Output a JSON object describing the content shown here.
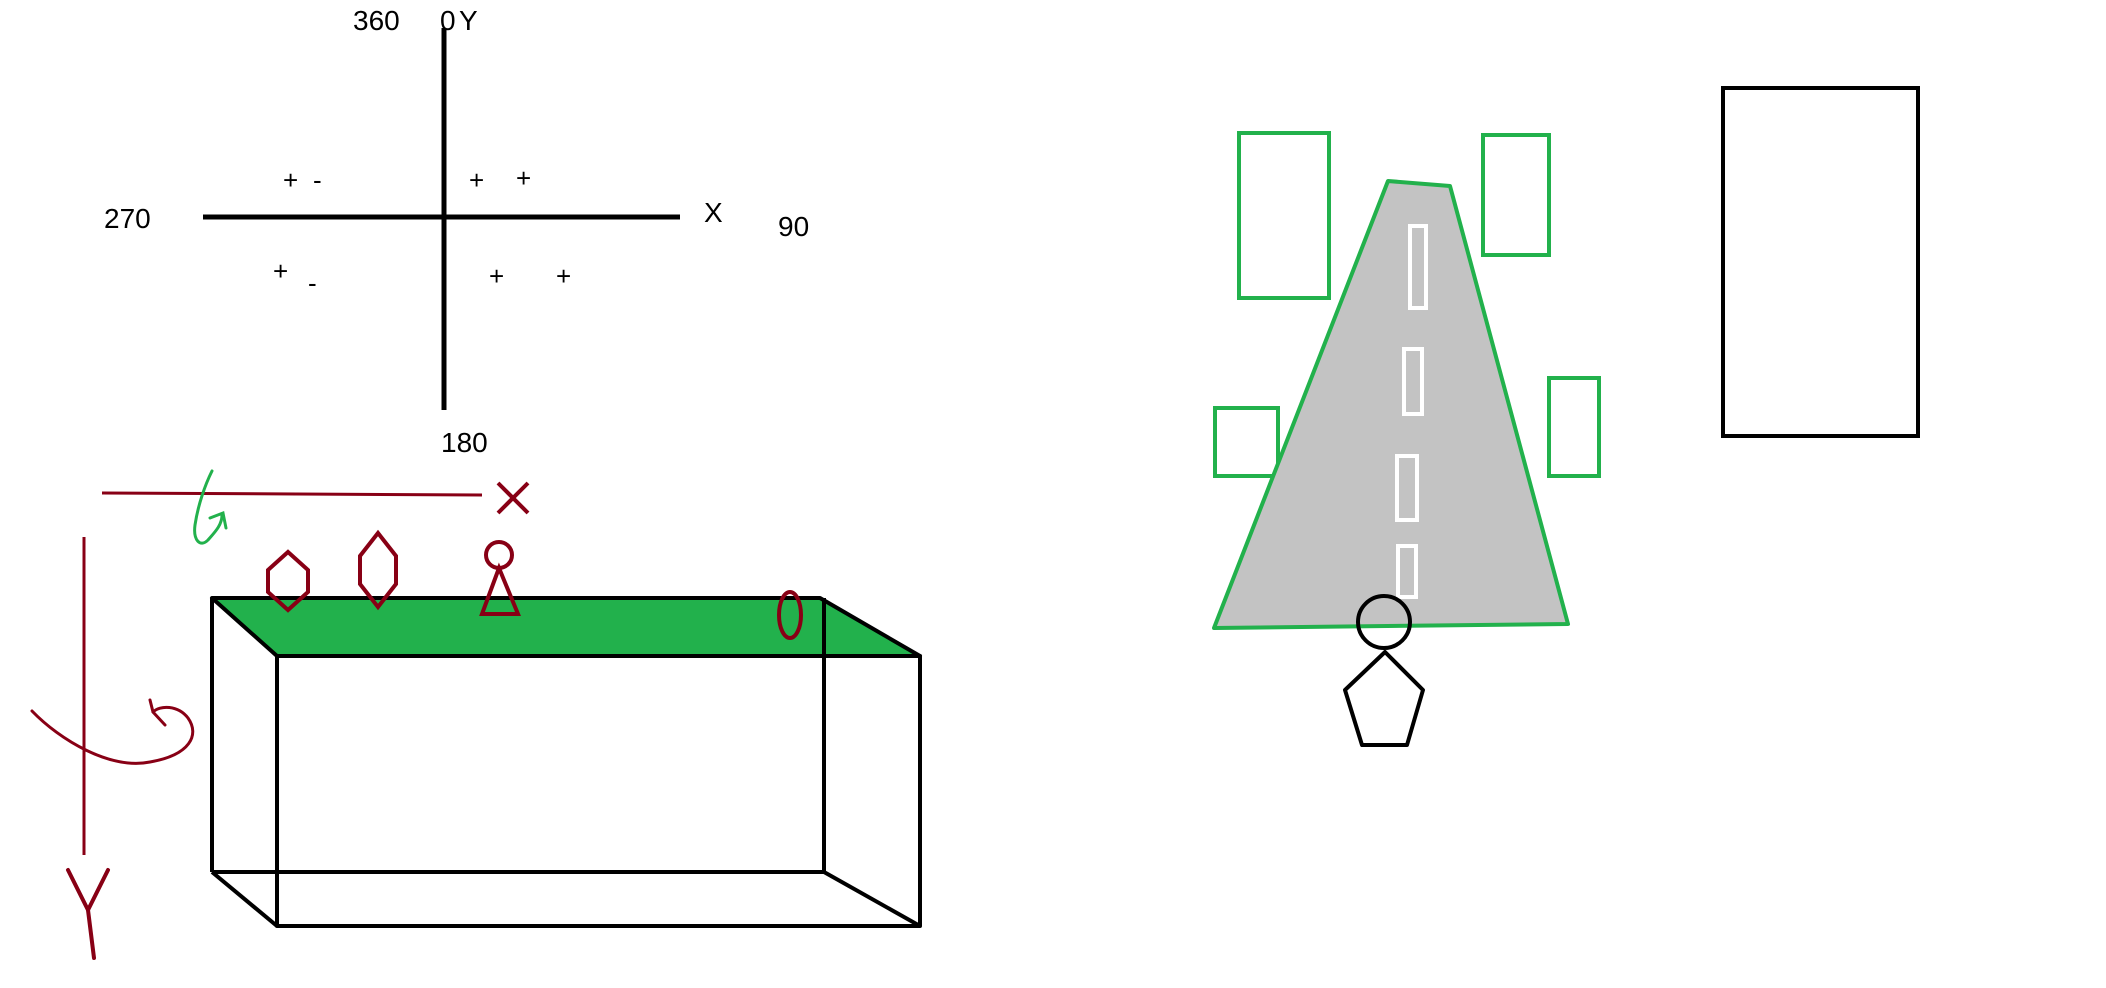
{
  "compass": {
    "top_left": "360",
    "top_right": "0",
    "top_axis": "Y",
    "left": "270",
    "right": "90",
    "x_axis": "X",
    "bottom": "180",
    "quadrants": {
      "upper_left": [
        "+",
        "-"
      ],
      "upper_right": [
        "+",
        "+"
      ],
      "lower_left": [
        "+",
        "-"
      ],
      "lower_right": [
        "+",
        "+"
      ]
    }
  },
  "box_scene": {
    "x_axis": "X",
    "y_axis": "Y"
  },
  "colors": {
    "ink": "#000000",
    "red_ink": "#880015",
    "green": "#22b14c",
    "road": "#c3c3c3",
    "background": "#ffffff"
  }
}
